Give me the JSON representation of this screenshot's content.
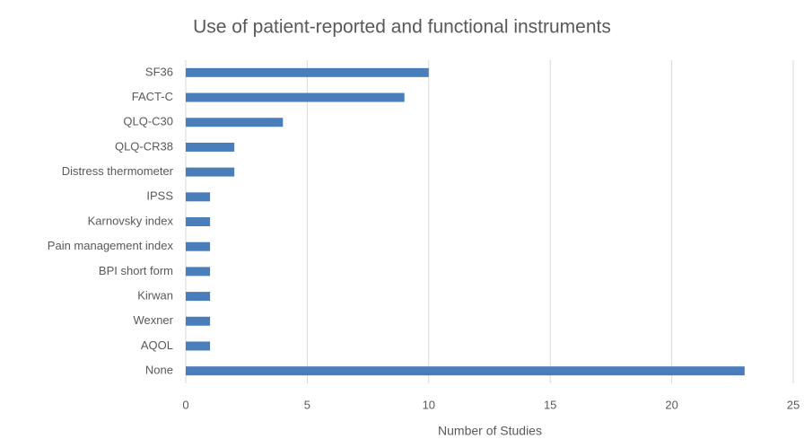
{
  "chart_data": {
    "type": "bar",
    "orientation": "horizontal",
    "title": "Use of patient-reported and functional instruments",
    "x_label": "Number of Studies",
    "categories": [
      "SF36",
      "FACT-C",
      "QLQ-C30",
      "QLQ-CR38",
      "Distress thermometer",
      "IPSS",
      "Karnovsky index",
      "Pain management index",
      "BPI short form",
      "Kirwan",
      "Wexner",
      "AQOL",
      "None"
    ],
    "values": [
      10,
      9,
      4,
      2,
      2,
      1,
      1,
      1,
      1,
      1,
      1,
      1,
      23
    ],
    "color": "#4a7ebb",
    "xlim": [
      0,
      25
    ],
    "xticks": [
      0,
      5,
      10,
      15,
      20,
      25
    ],
    "grid": true
  }
}
